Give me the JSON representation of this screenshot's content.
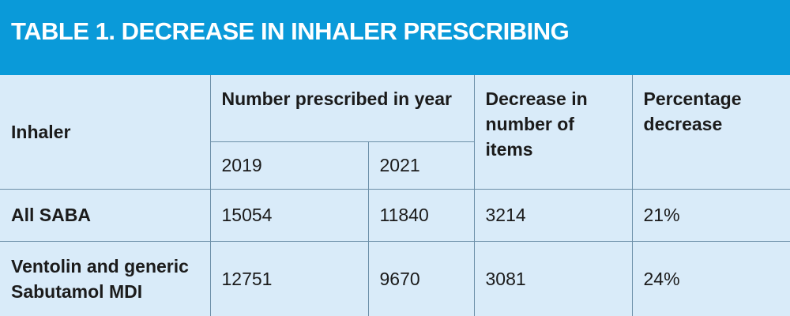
{
  "title": "TABLE 1. DECREASE IN INHALER PRESCRIBING",
  "headers": {
    "inhaler": "Inhaler",
    "number_prescribed": "Number prescribed in year",
    "year_2019": "2019",
    "year_2021": "2021",
    "decrease_items": "Decrease in number of items",
    "percentage_decrease": "Percentage decrease"
  },
  "rows": [
    {
      "inhaler": "All SABA",
      "y2019": "15054",
      "y2021": "11840",
      "decrease": "3214",
      "percent": "21%"
    },
    {
      "inhaler_line1": "Ventolin and generic",
      "inhaler_line2": "Sabutamol MDI",
      "y2019": "12751",
      "y2021": "9670",
      "decrease": "3081",
      "percent": "24%"
    }
  ],
  "colors": {
    "title_bar": "#0a9ad9",
    "title_text": "#ffffff",
    "table_bg": "#d9ebf9",
    "border": "#6c8fa8"
  }
}
